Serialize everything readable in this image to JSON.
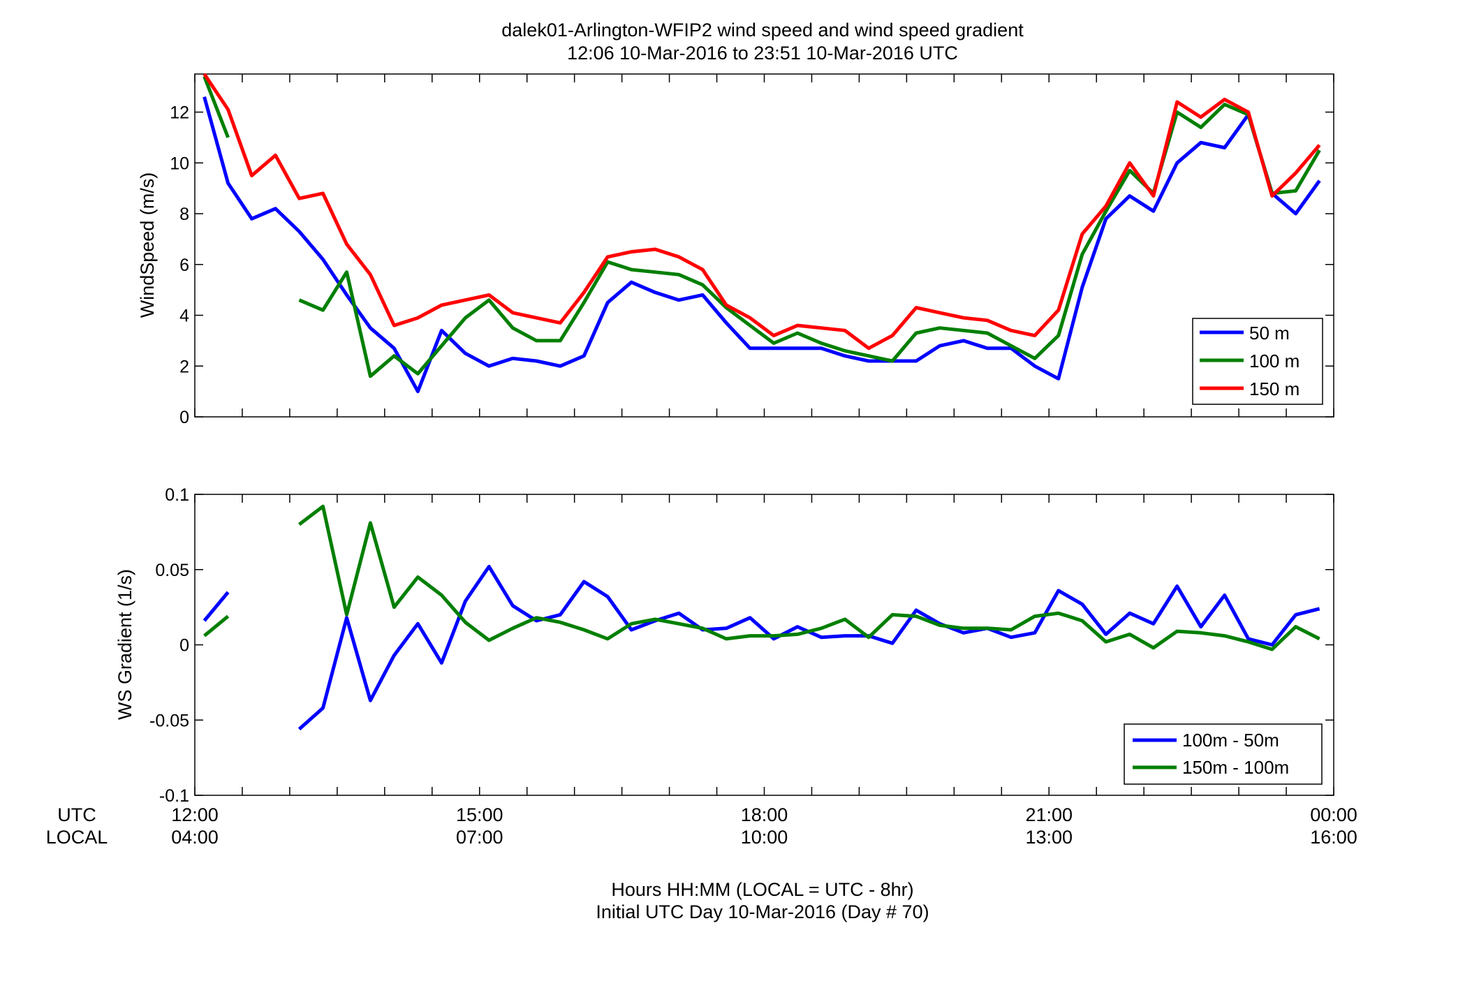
{
  "figure": {
    "title_line1": "dalek01-Arlington-WFIP2  wind speed and wind speed gradient",
    "title_line2": "12:06 10-Mar-2016 to 23:51 10-Mar-2016  UTC",
    "xlabel_line1": "Hours HH:MM  (LOCAL = UTC - 8hr)",
    "xlabel_line2": "Initial UTC Day 10-Mar-2016 (Day # 70)",
    "row_label_utc": "UTC",
    "row_label_local": "LOCAL",
    "x_ticks_utc": [
      "12:00",
      "15:00",
      "18:00",
      "21:00",
      "00:00"
    ],
    "x_ticks_local": [
      "04:00",
      "07:00",
      "10:00",
      "13:00",
      "16:00"
    ]
  },
  "chart_data": [
    {
      "type": "line",
      "ylabel": "WindSpeed (m/s)",
      "xlim": [
        12.0,
        24.0
      ],
      "ylim": [
        0,
        13.5
      ],
      "y_ticks": [
        0,
        2,
        4,
        6,
        8,
        10,
        12
      ],
      "y_tick_labels": [
        "0",
        "2",
        "4",
        "6",
        "8",
        "10",
        "12"
      ],
      "x_ticks": [
        12,
        15,
        18,
        21,
        24
      ],
      "legend_position": "bottom-right",
      "x": [
        12.1,
        12.35,
        12.6,
        12.85,
        13.1,
        13.35,
        13.6,
        13.85,
        14.1,
        14.35,
        14.6,
        14.85,
        15.1,
        15.35,
        15.6,
        15.85,
        16.1,
        16.35,
        16.6,
        16.85,
        17.1,
        17.35,
        17.6,
        17.85,
        18.1,
        18.35,
        18.6,
        18.85,
        19.1,
        19.35,
        19.6,
        19.85,
        20.1,
        20.35,
        20.6,
        20.85,
        21.1,
        21.35,
        21.6,
        21.85,
        22.1,
        22.35,
        22.6,
        22.85,
        23.1,
        23.35,
        23.6,
        23.85
      ],
      "series": [
        {
          "name": "50 m",
          "color": "#0000ff",
          "values": [
            12.6,
            9.2,
            7.8,
            8.2,
            7.3,
            6.2,
            4.8,
            3.5,
            2.7,
            1.0,
            3.4,
            2.5,
            2.0,
            2.3,
            2.2,
            2.0,
            2.4,
            4.5,
            5.3,
            4.9,
            4.6,
            4.8,
            3.7,
            2.7,
            2.7,
            2.7,
            2.7,
            2.4,
            2.2,
            2.2,
            2.2,
            2.8,
            3.0,
            2.7,
            2.7,
            2.0,
            1.5,
            5.1,
            7.8,
            8.7,
            8.1,
            10.0,
            10.8,
            10.6,
            11.9,
            8.8,
            8.0,
            9.3
          ]
        },
        {
          "name": "100 m",
          "color": "#007f00",
          "values": [
            13.4,
            11.0,
            null,
            null,
            4.6,
            4.2,
            5.7,
            1.6,
            2.4,
            1.7,
            2.8,
            3.9,
            4.6,
            3.5,
            3.0,
            3.0,
            4.5,
            6.1,
            5.8,
            5.7,
            5.6,
            5.2,
            4.3,
            3.6,
            2.9,
            3.3,
            2.9,
            2.6,
            2.4,
            2.2,
            3.3,
            3.5,
            3.4,
            3.3,
            2.8,
            2.3,
            3.2,
            6.4,
            8.1,
            9.7,
            8.8,
            12.0,
            11.4,
            12.3,
            11.9,
            8.8,
            8.9,
            10.5
          ]
        },
        {
          "name": "150 m",
          "color": "#ff0000",
          "values": [
            13.8,
            12.1,
            9.5,
            10.3,
            8.6,
            8.8,
            6.8,
            5.6,
            3.6,
            3.9,
            4.4,
            4.6,
            4.8,
            4.1,
            3.9,
            3.7,
            4.9,
            6.3,
            6.5,
            6.6,
            6.3,
            5.8,
            4.4,
            3.9,
            3.2,
            3.6,
            3.5,
            3.4,
            2.7,
            3.2,
            4.3,
            4.1,
            3.9,
            3.8,
            3.4,
            3.2,
            4.2,
            7.2,
            8.3,
            10.0,
            8.7,
            12.4,
            11.8,
            12.5,
            12.0,
            8.7,
            9.6,
            10.7
          ]
        }
      ]
    },
    {
      "type": "line",
      "ylabel": "WS Gradient (1/s)",
      "xlim": [
        12.0,
        24.0
      ],
      "ylim": [
        -0.1,
        0.1
      ],
      "y_ticks": [
        -0.1,
        -0.05,
        0,
        0.05,
        0.1
      ],
      "y_tick_labels": [
        "-0.1",
        "-0.05",
        "0",
        "0.05",
        "0.1"
      ],
      "x_ticks": [
        12,
        15,
        18,
        21,
        24
      ],
      "legend_position": "bottom-right",
      "x": [
        12.1,
        12.35,
        12.6,
        12.85,
        13.1,
        13.35,
        13.6,
        13.85,
        14.1,
        14.35,
        14.6,
        14.85,
        15.1,
        15.35,
        15.6,
        15.85,
        16.1,
        16.35,
        16.6,
        16.85,
        17.1,
        17.35,
        17.6,
        17.85,
        18.1,
        18.35,
        18.6,
        18.85,
        19.1,
        19.35,
        19.6,
        19.85,
        20.1,
        20.35,
        20.6,
        20.85,
        21.1,
        21.35,
        21.6,
        21.85,
        22.1,
        22.35,
        22.6,
        22.85,
        23.1,
        23.35,
        23.6,
        23.85
      ],
      "series": [
        {
          "name": "100m - 50m",
          "color": "#0000ff",
          "values": [
            0.016,
            0.035,
            null,
            null,
            -0.056,
            -0.042,
            0.018,
            -0.037,
            -0.007,
            0.014,
            -0.012,
            0.029,
            0.052,
            0.026,
            0.016,
            0.02,
            0.042,
            0.032,
            0.01,
            0.016,
            0.021,
            0.01,
            0.011,
            0.018,
            0.004,
            0.012,
            0.005,
            0.006,
            0.006,
            0.001,
            0.023,
            0.014,
            0.008,
            0.011,
            0.005,
            0.008,
            0.036,
            0.027,
            0.007,
            0.021,
            0.014,
            0.039,
            0.012,
            0.033,
            0.004,
            0.0,
            0.02,
            0.024
          ]
        },
        {
          "name": "150m - 100m",
          "color": "#007f00",
          "values": [
            0.006,
            0.019,
            null,
            null,
            0.08,
            0.092,
            0.02,
            0.081,
            0.025,
            0.045,
            0.033,
            0.015,
            0.003,
            0.011,
            0.018,
            0.015,
            0.01,
            0.004,
            0.014,
            0.017,
            0.014,
            0.011,
            0.004,
            0.006,
            0.006,
            0.007,
            0.011,
            0.017,
            0.005,
            0.02,
            0.019,
            0.013,
            0.011,
            0.011,
            0.01,
            0.019,
            0.021,
            0.016,
            0.002,
            0.007,
            -0.002,
            0.009,
            0.008,
            0.006,
            0.002,
            -0.003,
            0.012,
            0.004
          ]
        }
      ]
    }
  ]
}
